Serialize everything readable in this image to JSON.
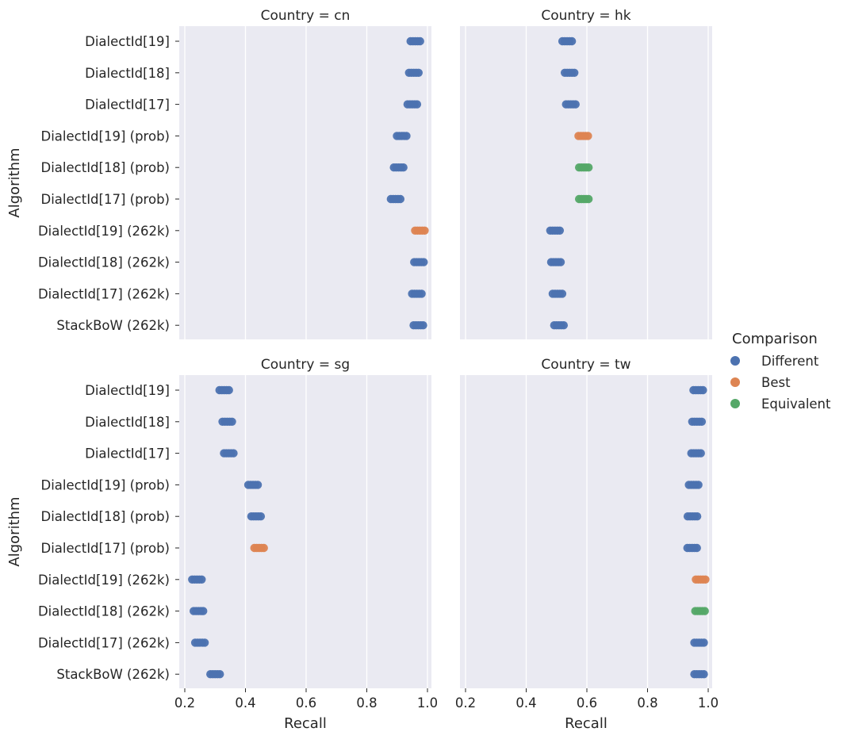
{
  "colors": {
    "Different": "#4c72b0",
    "Best": "#dd8452",
    "Equivalent": "#55a868"
  },
  "chart_data": {
    "type": "scatter",
    "subtype": "strip",
    "xlabel": "Recall",
    "ylabel": "Algorithm",
    "xlim": [
      0.2,
      1.02
    ],
    "xticks": [
      0.2,
      0.4,
      0.6,
      0.8,
      1.0
    ],
    "xtick_labels": [
      "0.2",
      "0.4",
      "0.6",
      "0.8",
      "1.0"
    ],
    "grid": true,
    "algorithms": [
      "DialectId[19]",
      "DialectId[18]",
      "DialectId[17]",
      "DialectId[19] (prob)",
      "DialectId[18] (prob)",
      "DialectId[17] (prob)",
      "DialectId[19] (262k)",
      "DialectId[18] (262k)",
      "DialectId[17] (262k)",
      "StackBoW (262k)"
    ],
    "legend": {
      "title": "Comparison",
      "position": "right",
      "entries": [
        "Different",
        "Best",
        "Equivalent"
      ]
    },
    "facets": [
      {
        "title": "Country = cn",
        "recall": [
          0.96,
          0.955,
          0.95,
          0.915,
          0.905,
          0.895,
          0.975,
          0.972,
          0.965,
          0.97
        ],
        "comparison": [
          "Different",
          "Different",
          "Different",
          "Different",
          "Different",
          "Different",
          "Best",
          "Different",
          "Different",
          "Different"
        ]
      },
      {
        "title": "Country = hk",
        "recall": [
          0.535,
          0.543,
          0.547,
          0.588,
          0.59,
          0.59,
          0.495,
          0.498,
          0.503,
          0.508
        ],
        "comparison": [
          "Different",
          "Different",
          "Different",
          "Best",
          "Equivalent",
          "Equivalent",
          "Different",
          "Different",
          "Different",
          "Different"
        ]
      },
      {
        "title": "Country = sg",
        "recall": [
          0.33,
          0.34,
          0.345,
          0.425,
          0.435,
          0.445,
          0.24,
          0.245,
          0.25,
          0.3
        ],
        "comparison": [
          "Different",
          "Different",
          "Different",
          "Different",
          "Different",
          "Best",
          "Different",
          "Different",
          "Different",
          "Different"
        ]
      },
      {
        "title": "Country = tw",
        "recall": [
          0.967,
          0.963,
          0.96,
          0.952,
          0.948,
          0.947,
          0.975,
          0.973,
          0.97,
          0.97
        ],
        "comparison": [
          "Different",
          "Different",
          "Different",
          "Different",
          "Different",
          "Different",
          "Best",
          "Equivalent",
          "Different",
          "Different"
        ]
      }
    ]
  }
}
